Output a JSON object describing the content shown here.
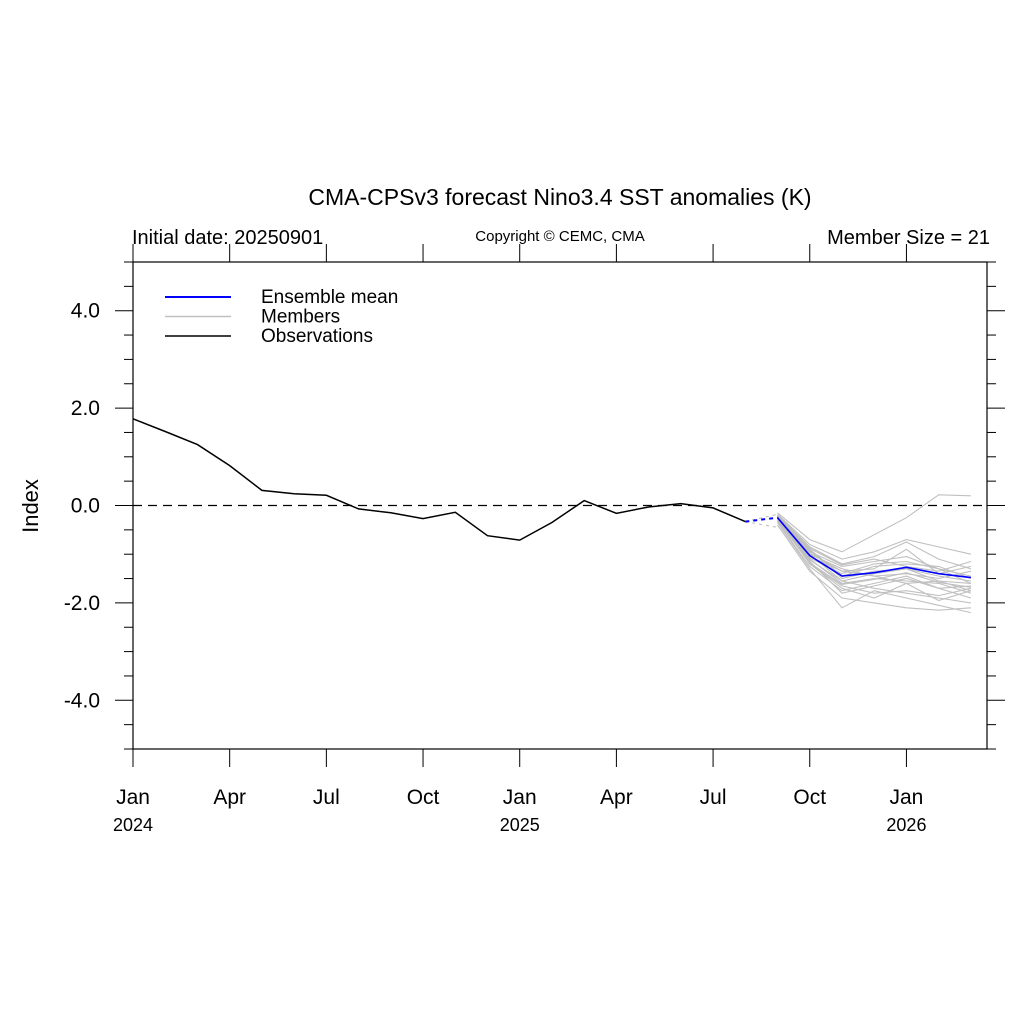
{
  "chart_data": {
    "type": "line",
    "title": "CMA-CPSv3 forecast Nino3.4 SST anomalies (K)",
    "initial_date": "Initial date: 20250901",
    "copyright": "Copyright © CEMC, CMA",
    "member_size": "Member Size = 21",
    "ylabel": "Index",
    "ylim": [
      -5,
      5
    ],
    "xlim_months": [
      0,
      26.5
    ],
    "y_ticks": [
      4,
      2,
      0,
      -2,
      -4
    ],
    "y_tick_labels": [
      "4.0",
      "2.0",
      "0.0",
      "-2.0",
      "-4.0"
    ],
    "x_ticks": [
      {
        "month": 0,
        "label": "Jan",
        "year": "2024"
      },
      {
        "month": 3,
        "label": "Apr",
        "year": ""
      },
      {
        "month": 6,
        "label": "Jul",
        "year": ""
      },
      {
        "month": 9,
        "label": "Oct",
        "year": ""
      },
      {
        "month": 12,
        "label": "Jan",
        "year": "2025"
      },
      {
        "month": 15,
        "label": "Apr",
        "year": ""
      },
      {
        "month": 18,
        "label": "Jul",
        "year": ""
      },
      {
        "month": 21,
        "label": "Oct",
        "year": ""
      },
      {
        "month": 24,
        "label": "Jan",
        "year": "2026"
      }
    ],
    "legend": [
      {
        "name": "Ensemble mean",
        "color": "#0000ff"
      },
      {
        "name": "Members",
        "color": "#c0c0c0"
      },
      {
        "name": "Observations",
        "color": "#000000"
      }
    ],
    "zero_line": {
      "value": 0,
      "style": "dashed"
    },
    "observations": {
      "x": [
        0,
        1,
        2,
        3,
        4,
        5,
        6,
        7,
        8,
        9,
        10,
        11,
        12,
        13,
        14,
        15,
        16,
        17,
        18,
        19
      ],
      "y": [
        1.78,
        1.52,
        1.25,
        0.82,
        0.31,
        0.24,
        0.21,
        -0.07,
        -0.15,
        -0.27,
        -0.14,
        -0.62,
        -0.71,
        -0.35,
        0.1,
        -0.16,
        -0.03,
        0.04,
        -0.05,
        -0.33
      ]
    },
    "ensemble_mean": {
      "x": [
        20,
        21,
        22,
        23,
        24,
        25,
        26
      ],
      "y": [
        -0.25,
        -1.03,
        -1.45,
        -1.38,
        -1.27,
        -1.4,
        -1.48
      ]
    },
    "connector": {
      "x": [
        19,
        20
      ],
      "y": [
        -0.33,
        -0.25
      ],
      "members_end_y": [
        -0.18,
        -0.45
      ]
    },
    "members": [
      [
        -0.25,
        -1.0,
        -1.55,
        -1.4,
        -1.3,
        -1.55,
        -1.6
      ],
      [
        -0.2,
        -0.85,
        -1.2,
        -1.05,
        -0.75,
        -1.1,
        -1.3
      ],
      [
        -0.3,
        -1.15,
        -1.8,
        -1.65,
        -1.5,
        -1.7,
        -1.65
      ],
      [
        -0.15,
        -0.7,
        -0.95,
        -0.6,
        -0.25,
        0.22,
        0.2
      ],
      [
        -0.35,
        -1.3,
        -2.1,
        -1.75,
        -1.9,
        -2.05,
        -2.2
      ],
      [
        -0.25,
        -1.05,
        -1.35,
        -1.3,
        -0.9,
        -1.4,
        -1.25
      ],
      [
        -0.28,
        -1.2,
        -1.7,
        -1.9,
        -1.6,
        -1.95,
        -1.75
      ],
      [
        -0.22,
        -0.95,
        -1.25,
        -1.15,
        -1.05,
        -1.3,
        -1.45
      ],
      [
        -0.4,
        -1.35,
        -1.9,
        -2.0,
        -2.1,
        -2.15,
        -2.1
      ],
      [
        -0.18,
        -0.8,
        -1.1,
        -0.95,
        -0.7,
        -0.85,
        -1.0
      ],
      [
        -0.32,
        -1.1,
        -1.6,
        -1.5,
        -1.55,
        -1.6,
        -1.8
      ],
      [
        -0.26,
        -0.9,
        -1.45,
        -1.25,
        -1.2,
        -1.25,
        -1.5
      ],
      [
        -0.24,
        -1.2,
        -1.65,
        -1.8,
        -1.75,
        -1.85,
        -1.7
      ],
      [
        -0.3,
        -1.0,
        -1.3,
        -1.45,
        -1.4,
        -1.5,
        -1.35
      ],
      [
        -0.2,
        -0.92,
        -1.5,
        -1.35,
        -1.3,
        -1.45,
        -1.55
      ],
      [
        -0.34,
        -1.25,
        -1.75,
        -1.6,
        -1.45,
        -1.7,
        -1.9
      ],
      [
        -0.27,
        -1.08,
        -1.4,
        -1.2,
        -1.15,
        -1.3,
        -1.6
      ],
      [
        -0.23,
        -0.98,
        -1.35,
        -1.45,
        -1.6,
        -1.55,
        -1.75
      ],
      [
        -0.29,
        -1.12,
        -1.55,
        -1.7,
        -1.8,
        -1.9,
        -2.0
      ],
      [
        -0.21,
        -0.88,
        -1.22,
        -1.1,
        -1.25,
        -1.35,
        -1.15
      ],
      [
        -0.31,
        -1.18,
        -1.62,
        -1.52,
        -1.38,
        -1.58,
        -1.68
      ]
    ]
  }
}
